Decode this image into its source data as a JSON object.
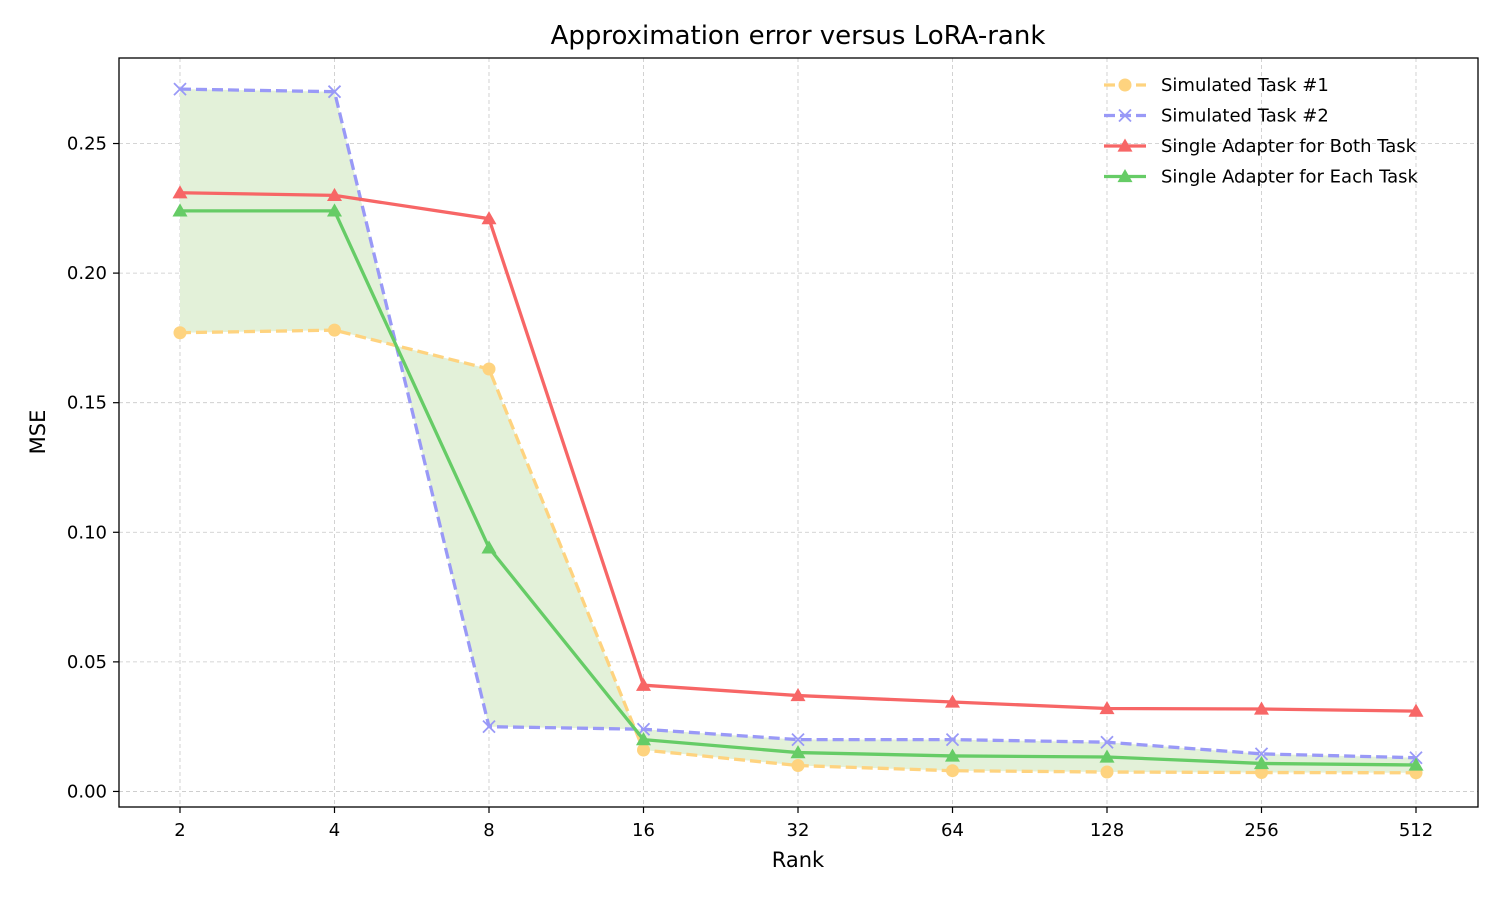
{
  "chart_data": {
    "type": "line",
    "title": "Approximation error versus LoRA-rank",
    "xlabel": "Rank",
    "ylabel": "MSE",
    "x_scale": "log2",
    "categories": [
      "2",
      "4",
      "8",
      "16",
      "32",
      "64",
      "128",
      "256",
      "512"
    ],
    "ylim": [
      -0.006,
      0.283
    ],
    "yticks": [
      "0.00",
      "0.05",
      "0.10",
      "0.15",
      "0.20",
      "0.25"
    ],
    "ytick_values": [
      0.0,
      0.05,
      0.1,
      0.15,
      0.2,
      0.25
    ],
    "grid": true,
    "legend_position": "top-right",
    "fill_between": {
      "between": [
        "Simulated Task #1",
        "Simulated Task #2"
      ],
      "color": "#e3f1d9"
    },
    "series": [
      {
        "name": "Simulated Task #1",
        "color": "#fed37f",
        "style": "dashed",
        "marker": "circle",
        "values": [
          0.177,
          0.178,
          0.163,
          0.016,
          0.01,
          0.008,
          0.0075,
          0.0073,
          0.0072
        ]
      },
      {
        "name": "Simulated Task #2",
        "color": "#9999f7",
        "style": "dashed",
        "marker": "x",
        "values": [
          0.271,
          0.27,
          0.025,
          0.024,
          0.02,
          0.02,
          0.019,
          0.0145,
          0.013
        ]
      },
      {
        "name": "Single Adapter for Both Task",
        "color": "#f76666",
        "style": "solid",
        "marker": "triangle",
        "values": [
          0.231,
          0.23,
          0.221,
          0.041,
          0.037,
          0.0345,
          0.032,
          0.0318,
          0.031
        ]
      },
      {
        "name": "Single Adapter for Each Task",
        "color": "#66cc66",
        "style": "solid",
        "marker": "triangle",
        "values": [
          0.224,
          0.224,
          0.094,
          0.02,
          0.015,
          0.0137,
          0.0133,
          0.0108,
          0.0102
        ]
      }
    ]
  }
}
